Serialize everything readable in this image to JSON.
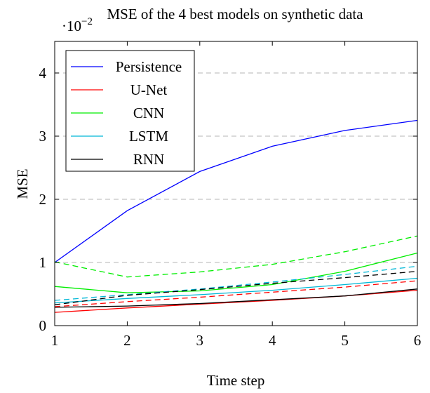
{
  "chart_data": {
    "type": "line",
    "title": "MSE of the 4 best models on synthetic data",
    "xlabel": "Time step",
    "ylabel": "MSE",
    "y_multiplier_label": "·10",
    "y_multiplier_exponent": "−2",
    "x": [
      1,
      2,
      3,
      4,
      5,
      6
    ],
    "xlim": [
      1,
      6
    ],
    "ylim": [
      0,
      4.5
    ],
    "y_unit_scale": "1e-2",
    "xticks": [
      "1",
      "2",
      "3",
      "4",
      "5",
      "6"
    ],
    "yticks": [
      "0",
      "1",
      "2",
      "3",
      "4"
    ],
    "ytick_values": [
      0,
      1,
      2,
      3,
      4
    ],
    "grid": "horizontal dashed",
    "legend_position": "top-left",
    "series": [
      {
        "name": "Persistence",
        "color": "#0000ff",
        "style": "solid",
        "values": [
          1.0,
          1.82,
          2.44,
          2.84,
          3.09,
          3.25
        ]
      },
      {
        "name": "U-Net",
        "color": "#ff0000",
        "style": "solid",
        "values": [
          0.21,
          0.28,
          0.34,
          0.4,
          0.47,
          0.56
        ]
      },
      {
        "name": "CNN",
        "color": "#00ee00",
        "style": "solid",
        "values": [
          0.62,
          0.52,
          0.55,
          0.65,
          0.86,
          1.15
        ]
      },
      {
        "name": "LSTM",
        "color": "#00b7d6",
        "style": "solid",
        "values": [
          0.36,
          0.43,
          0.49,
          0.56,
          0.65,
          0.75
        ]
      },
      {
        "name": "RNN",
        "color": "#000000",
        "style": "solid",
        "values": [
          0.29,
          0.31,
          0.35,
          0.41,
          0.47,
          0.58
        ]
      },
      {
        "name": "",
        "color": "#ff0000",
        "style": "dashed",
        "values": [
          0.3,
          0.38,
          0.45,
          0.53,
          0.61,
          0.71
        ]
      },
      {
        "name": "",
        "color": "#00ee00",
        "style": "dashed",
        "values": [
          1.01,
          0.77,
          0.85,
          0.97,
          1.17,
          1.42
        ]
      },
      {
        "name": "",
        "color": "#00b7d6",
        "style": "dashed",
        "values": [
          0.4,
          0.49,
          0.58,
          0.69,
          0.81,
          0.94
        ]
      },
      {
        "name": "",
        "color": "#000000",
        "style": "dashed",
        "values": [
          0.33,
          0.48,
          0.57,
          0.67,
          0.76,
          0.86
        ]
      }
    ]
  }
}
